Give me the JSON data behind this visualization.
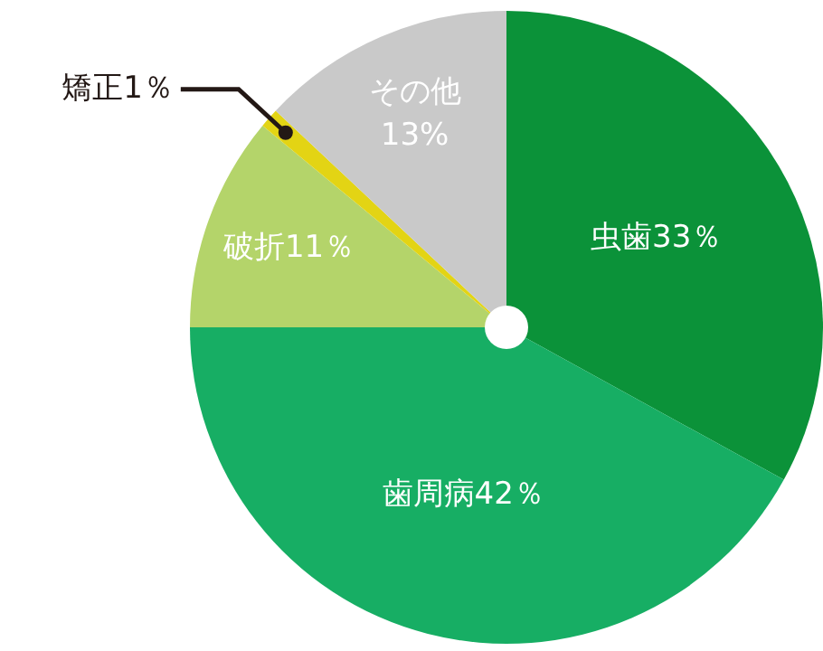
{
  "chart_data": {
    "type": "pie",
    "categories": [
      "虫歯",
      "歯周病",
      "破折",
      "矯正",
      "その他"
    ],
    "values": [
      33,
      42,
      11,
      1,
      13
    ],
    "colors": [
      "#0b9239",
      "#17ae64",
      "#b4d46a",
      "#e3d414",
      "#c9c9c9"
    ],
    "value_labels": [
      "33％",
      "42％",
      "11％",
      "1％",
      "13%"
    ],
    "legend": false
  }
}
